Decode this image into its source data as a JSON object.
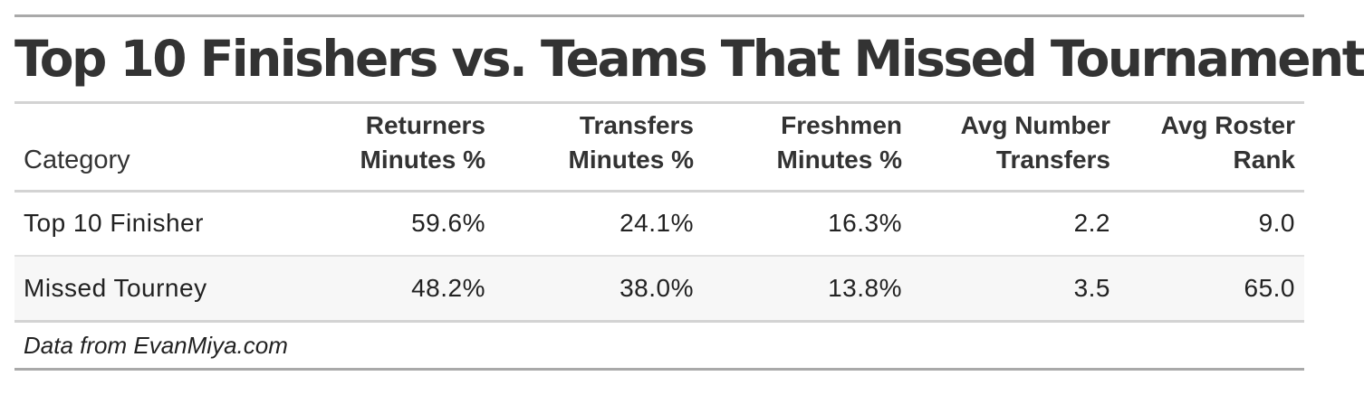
{
  "chart_data": {
    "type": "table",
    "title": "Top 10 Finishers vs. Teams That Missed Tournament",
    "columns": [
      {
        "line1": "",
        "line2": "Category"
      },
      {
        "line1": "Returners",
        "line2": "Minutes %"
      },
      {
        "line1": "Transfers",
        "line2": "Minutes %"
      },
      {
        "line1": "Freshmen",
        "line2": "Minutes %"
      },
      {
        "line1": "Avg Number",
        "line2": "Transfers"
      },
      {
        "line1": "Avg Roster",
        "line2": "Rank"
      }
    ],
    "rows": [
      [
        "Top 10 Finisher",
        "59.6%",
        "24.1%",
        "16.3%",
        "2.2",
        "9.0"
      ],
      [
        "Missed Tourney",
        "48.2%",
        "38.0%",
        "13.8%",
        "3.5",
        "65.0"
      ]
    ],
    "source_note": "Data from EvanMiya.com"
  }
}
